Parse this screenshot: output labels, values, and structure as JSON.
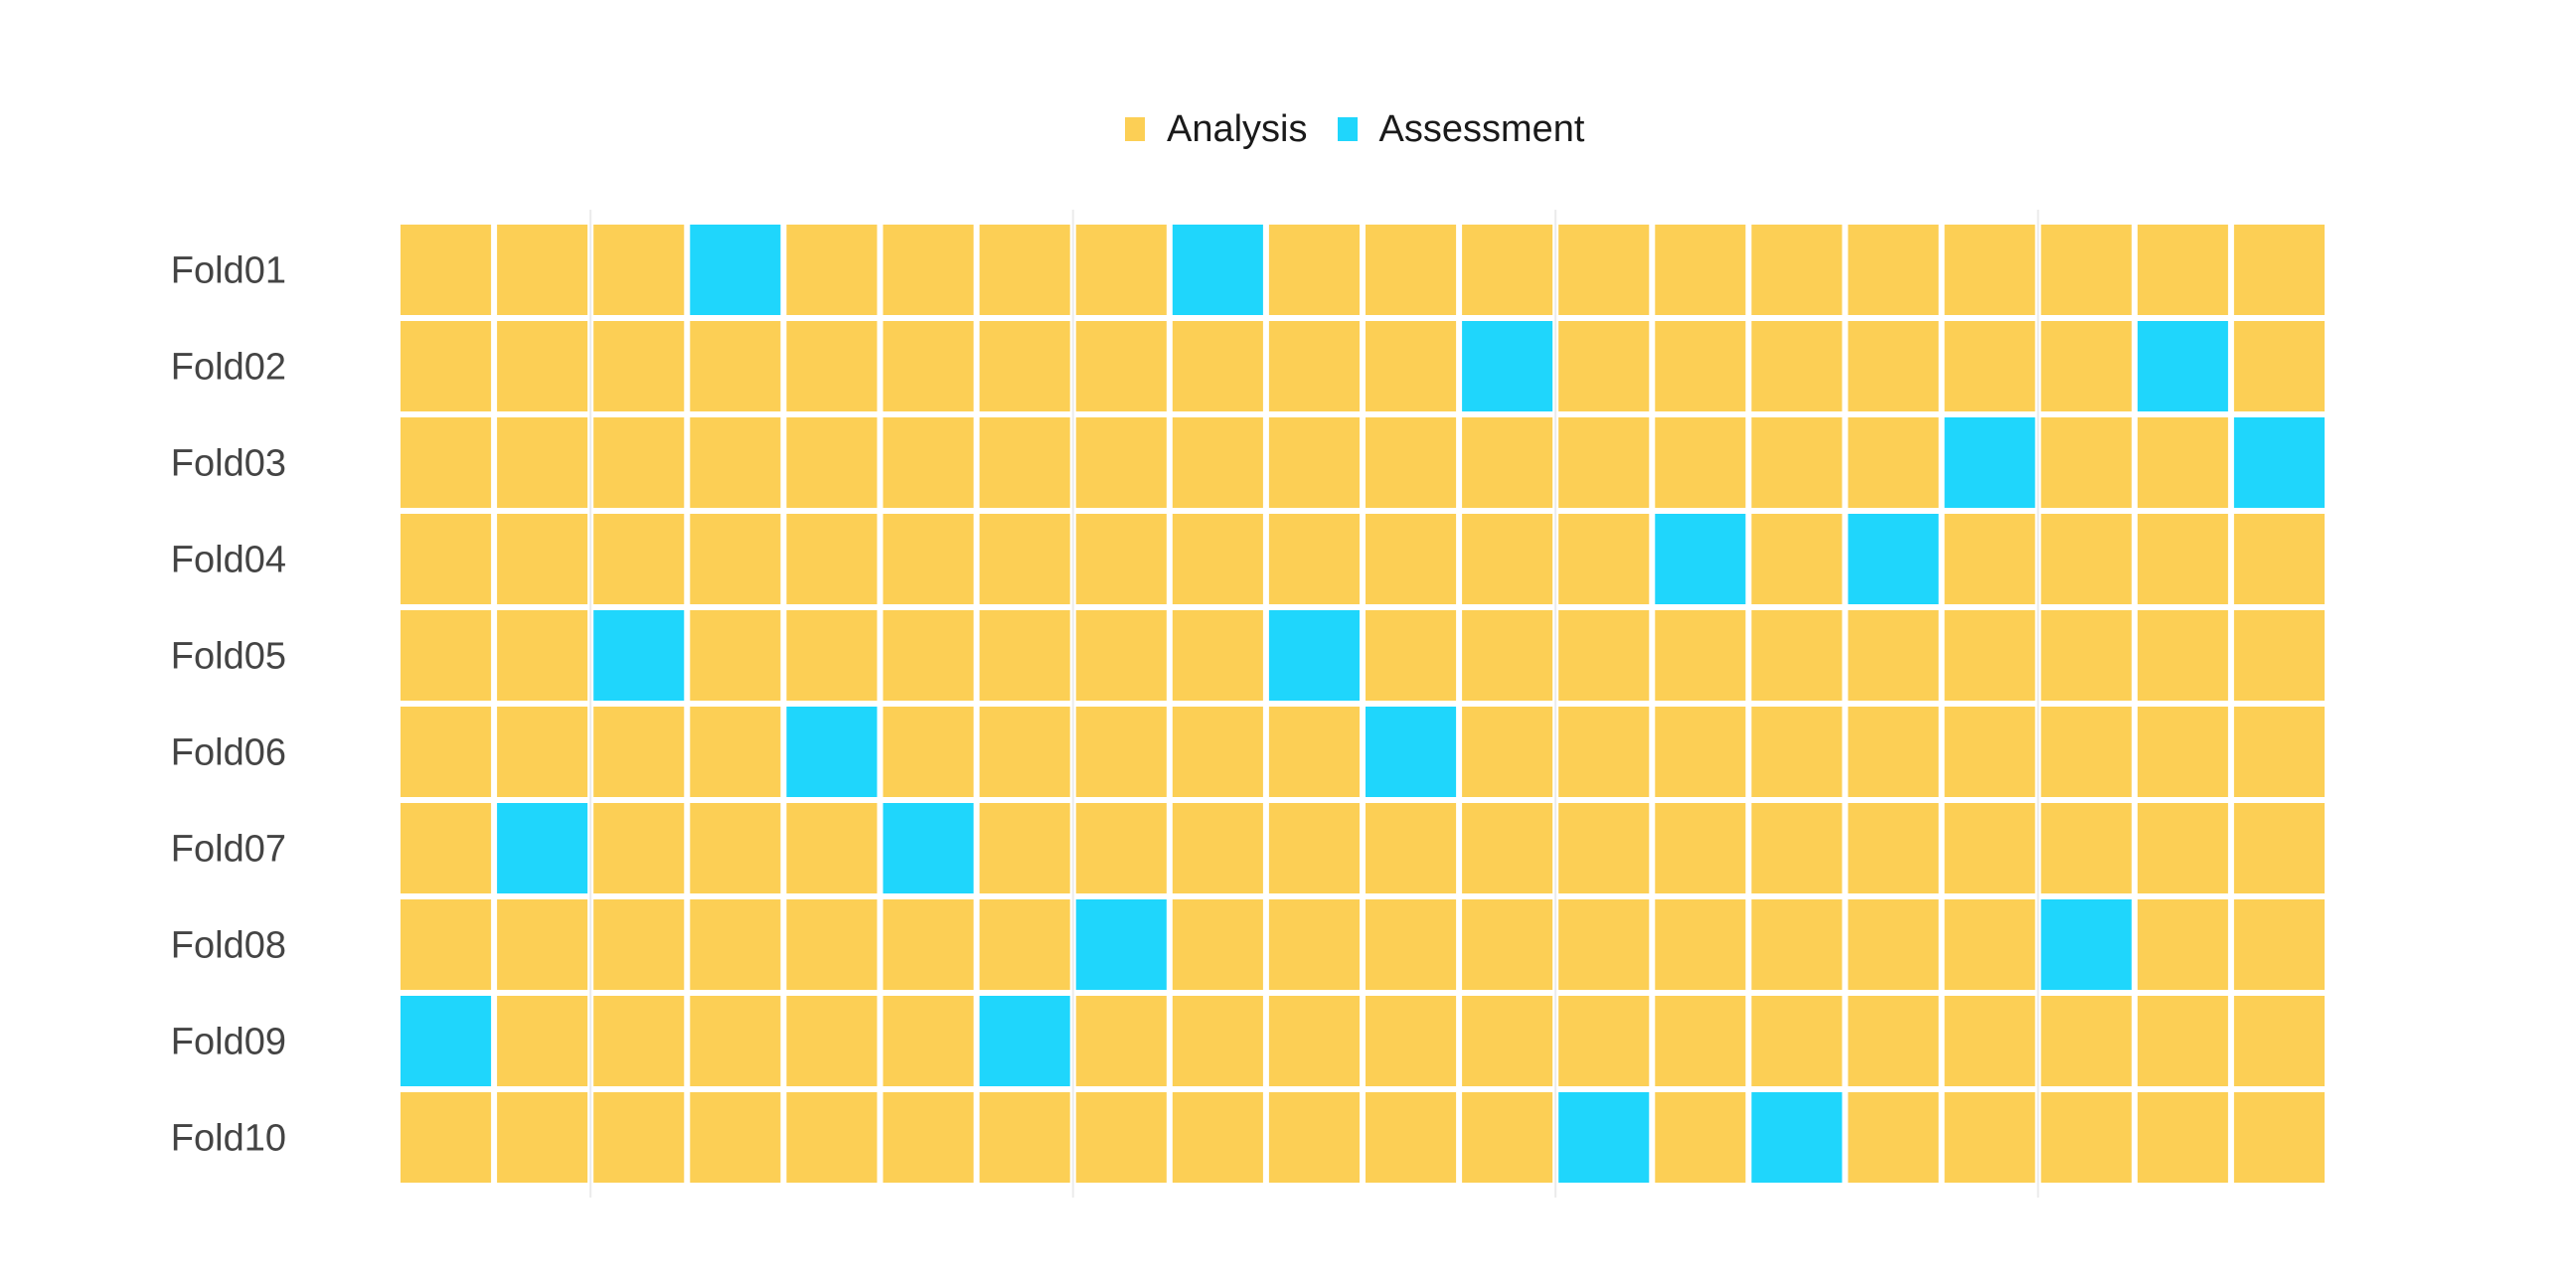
{
  "chart_data": {
    "type": "heatmap",
    "series": [
      {
        "name": "Analysis",
        "color": "#fccf55"
      },
      {
        "name": "Assessment",
        "color": "#1fd6fc"
      }
    ],
    "rows": [
      "Fold01",
      "Fold02",
      "Fold03",
      "Fold04",
      "Fold05",
      "Fold06",
      "Fold07",
      "Fold08",
      "Fold09",
      "Fold10"
    ],
    "columns": 20,
    "assessment_columns": [
      [
        4,
        9
      ],
      [
        12,
        19
      ],
      [
        17,
        20
      ],
      [
        14,
        16
      ],
      [
        3,
        10
      ],
      [
        5,
        11
      ],
      [
        2,
        6
      ],
      [
        8,
        18
      ],
      [
        1,
        7
      ],
      [
        13,
        15
      ]
    ],
    "legend_position": "top",
    "grid": true
  }
}
